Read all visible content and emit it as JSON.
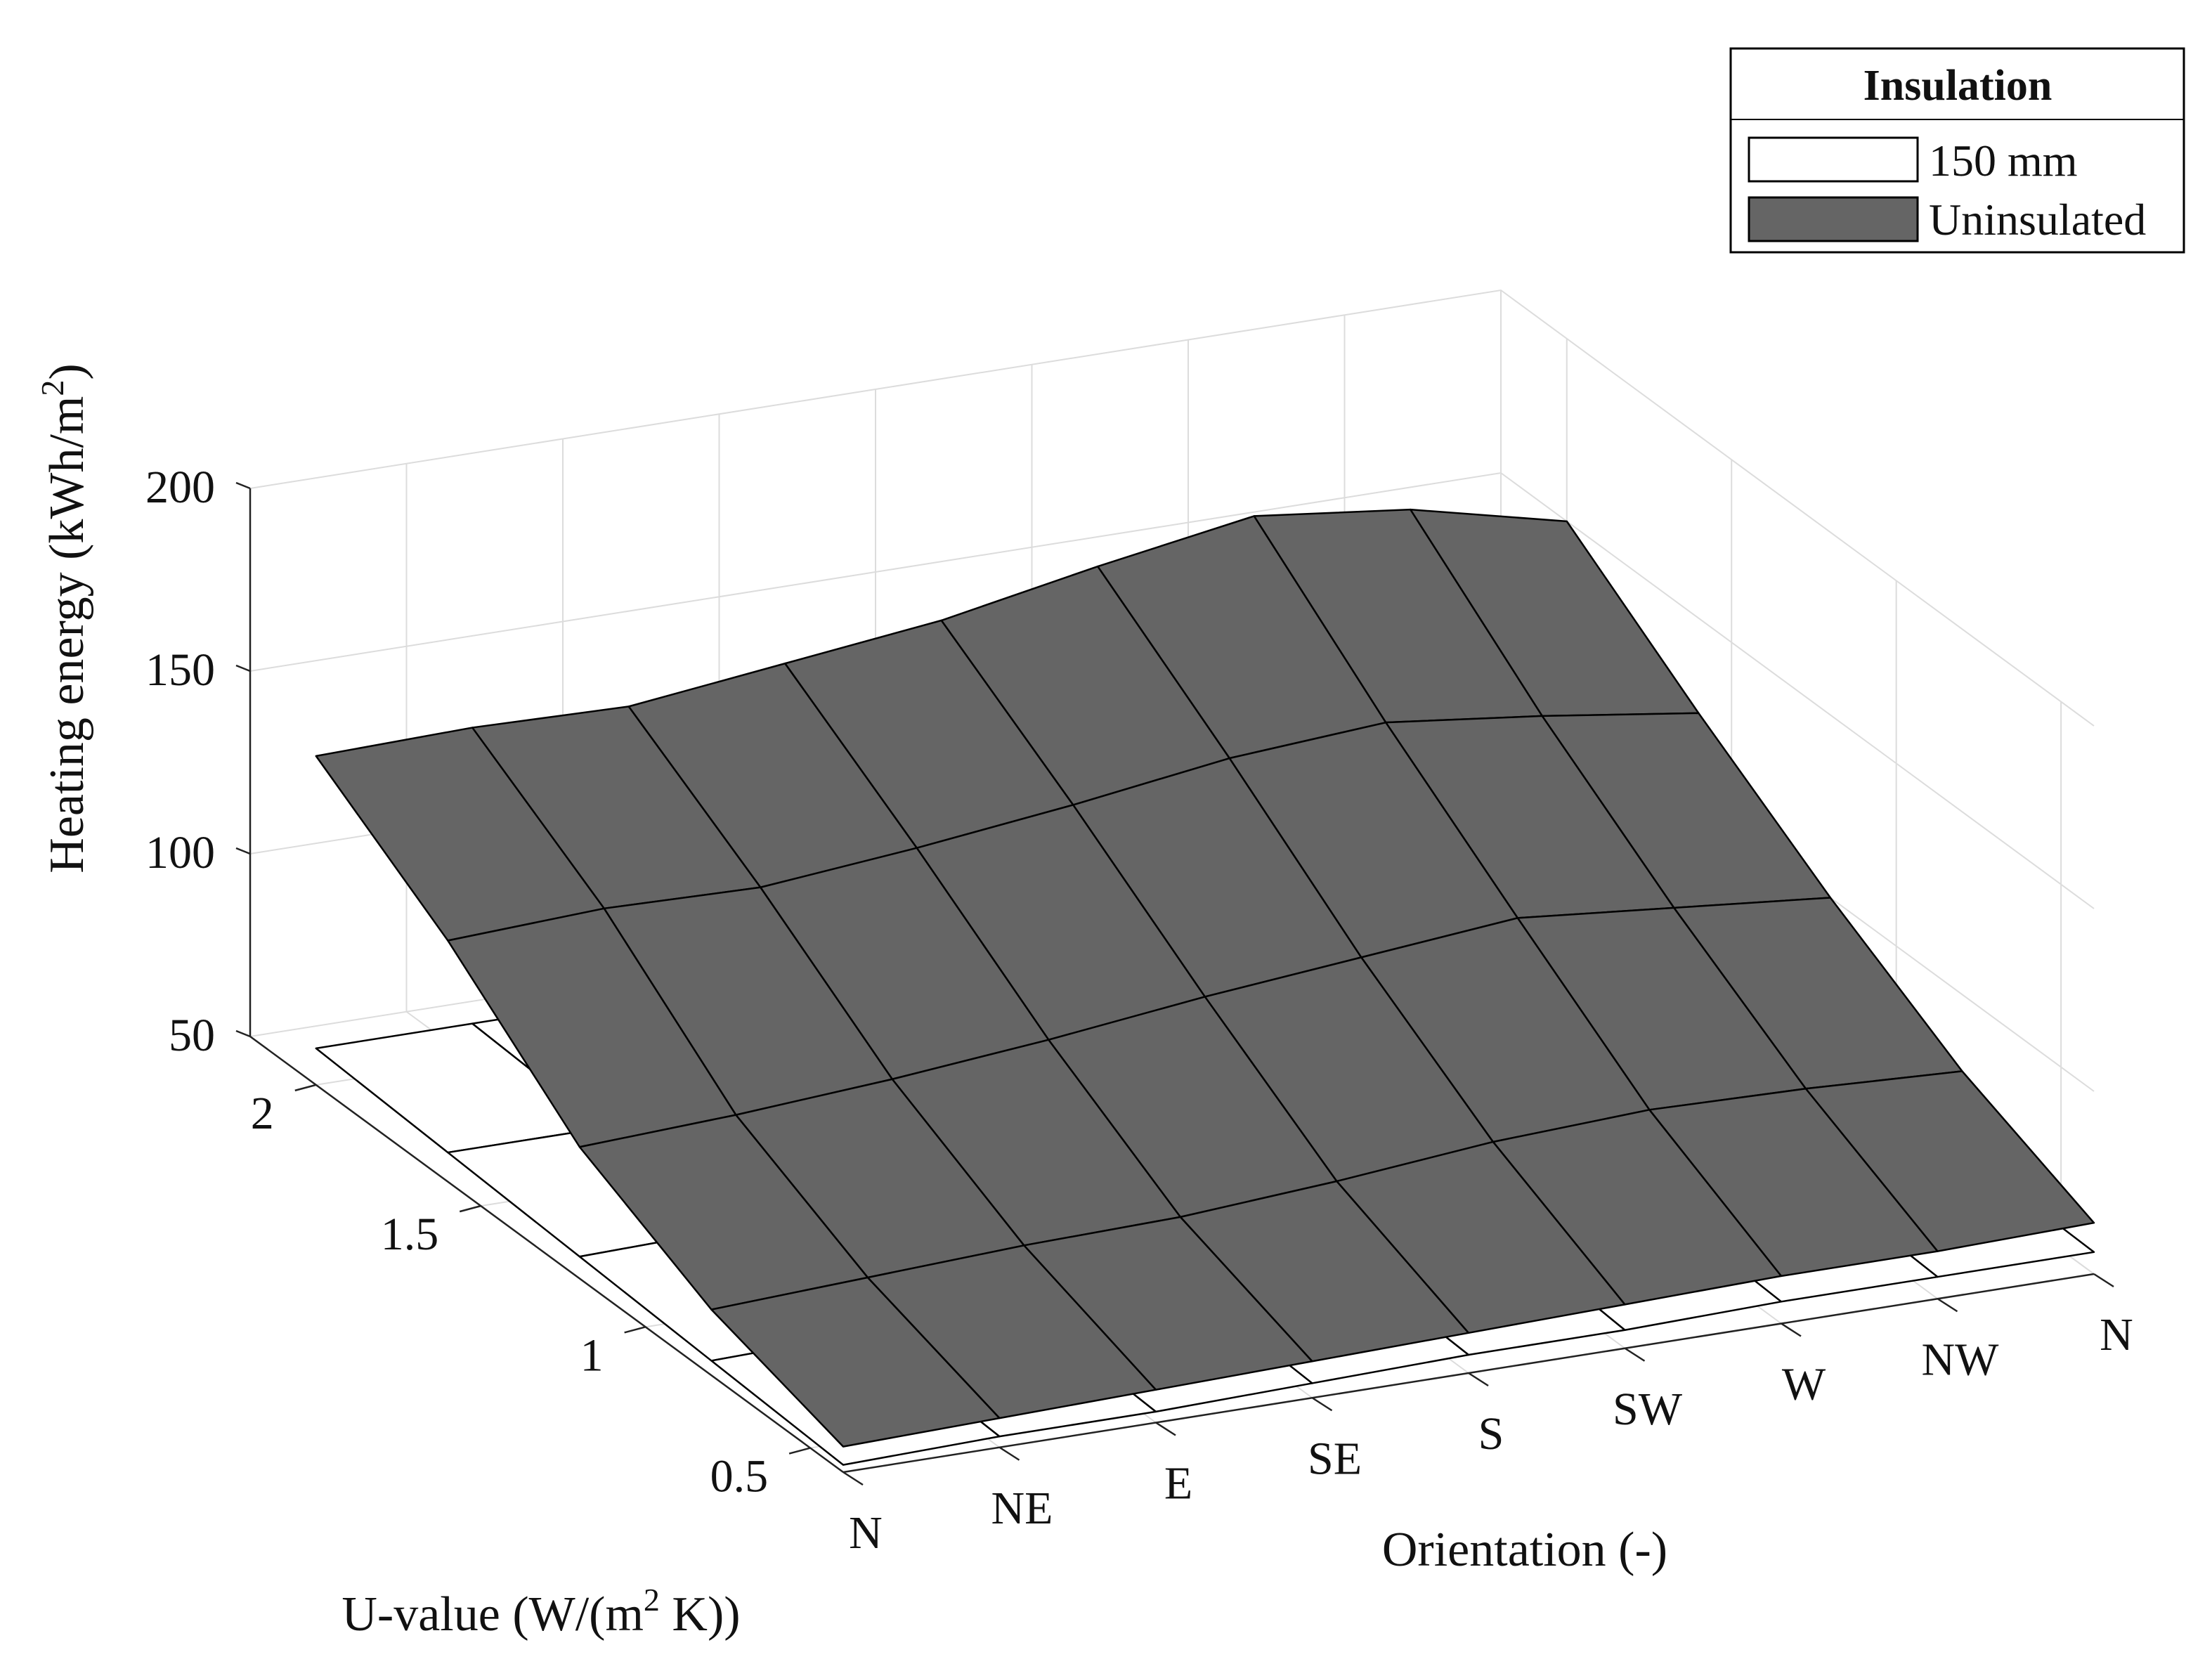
{
  "chart_data": {
    "type": "surface",
    "zlabel": "Heating energy (kWh/m",
    "zlabel_sup": "2",
    "zlabel_end": ")",
    "xlabel": "Orientation (-)",
    "ylabel_pre": "U-value (W/(m",
    "ylabel_sup": "2",
    "ylabel_post": " K))",
    "orientations": [
      "N",
      "NE",
      "E",
      "SE",
      "S",
      "SW",
      "W",
      "NW",
      "N"
    ],
    "u_ticks": [
      "0.5",
      "1",
      "1.5",
      "2"
    ],
    "u_tick_values": [
      0.5,
      1,
      1.5,
      2
    ],
    "z_ticks": [
      "50",
      "100",
      "150",
      "200"
    ],
    "z_tick_values": [
      50,
      100,
      150,
      200
    ],
    "zlim": [
      50,
      200
    ],
    "ulim": [
      0.4,
      2.2
    ],
    "grid": true,
    "legend_position": "top-right",
    "legend": {
      "title": "Insulation",
      "entries": [
        "150 mm",
        "Uninsulated"
      ]
    },
    "u_values": [
      0.4,
      0.8,
      1.2,
      1.6,
      2.0
    ],
    "series": [
      {
        "name": "Uninsulated",
        "color": "#656565",
        "edge": "#000000",
        "values": [
          [
            57,
            58,
            59,
            60,
            61,
            62,
            63,
            63,
            64
          ],
          [
            68,
            70,
            72,
            73,
            76,
            80,
            82,
            81,
            79
          ],
          [
            86,
            88,
            91,
            95,
            100,
            104,
            108,
            104,
            100
          ],
          [
            116,
            118,
            117,
            121,
            126,
            132,
            135,
            130,
            124
          ],
          [
            140,
            141,
            140,
            145,
            150,
            158,
            165,
            160,
            150
          ]
        ]
      },
      {
        "name": "150 mm",
        "color": "#ffffff",
        "edge": "#000000",
        "values": [
          [
            52,
            53,
            53,
            54,
            55,
            55,
            56,
            56,
            56
          ],
          [
            54,
            55,
            55,
            56,
            57,
            58,
            58,
            58,
            57
          ],
          [
            56,
            57,
            57,
            58,
            59,
            60,
            60,
            60,
            58
          ],
          [
            58,
            58,
            58,
            59,
            61,
            62,
            62,
            61,
            59
          ],
          [
            60,
            60,
            60,
            60,
            62,
            63,
            63,
            62,
            60
          ]
        ]
      }
    ]
  }
}
